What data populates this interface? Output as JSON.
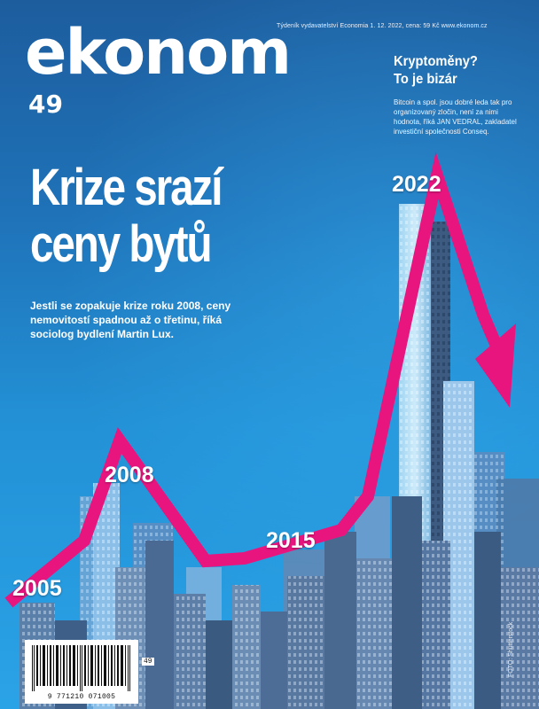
{
  "masthead": {
    "title": "ekonom",
    "issue": "49"
  },
  "dateline": "Týdeník vydavatelství Economia  1. 12. 2022, cena: 59 Kč  www.ekonom.cz",
  "promo": {
    "title_line1": "Kryptoměny?",
    "title_line2": "To je bizár",
    "body": "Bitcoin a spol. jsou dobré leda tak pro organizovaný zločin, není za nimi hodnota, říká JAN VEDRAL, zakladatel investiční společnosti Conseq."
  },
  "headline": {
    "line1": "Krize srazí",
    "line2": "ceny bytů"
  },
  "subhead": "Jestli se zopakuje krize roku 2008, ceny nemovitostí spadnou až o třetinu, říká sociolog bydlení Martin Lux.",
  "price_trend": {
    "labels": [
      "2005",
      "2008",
      "2015",
      "2022"
    ]
  },
  "barcode": {
    "digits": "9 771210 071005",
    "addon": "49"
  },
  "credit": "FOTO: Shutterstock",
  "colors": {
    "arrow": "#e8157f",
    "background_top": "#1d5d9e",
    "background_bottom": "#2aa3e6"
  }
}
